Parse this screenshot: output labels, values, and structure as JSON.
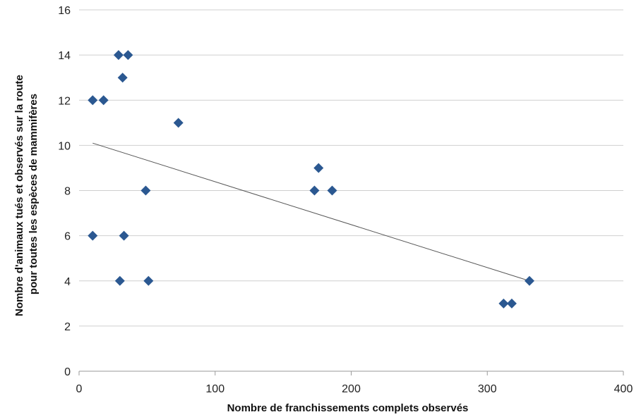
{
  "chart_data": {
    "type": "scatter",
    "xlabel": "Nombre de franchissements complets observés",
    "ylabel_lines": [
      "Nombre d'animaux tués et observés sur la route",
      "pour toutes les espèces de mammifères"
    ],
    "xlim": [
      0,
      400
    ],
    "ylim": [
      0,
      16
    ],
    "x_ticks": [
      0,
      100,
      200,
      300,
      400
    ],
    "y_ticks": [
      0,
      2,
      4,
      6,
      8,
      10,
      12,
      14,
      16
    ],
    "grid": "horizontal",
    "marker": "diamond",
    "marker_color": "#2b5891",
    "points": [
      {
        "x": 10,
        "y": 12
      },
      {
        "x": 18,
        "y": 12
      },
      {
        "x": 10,
        "y": 6
      },
      {
        "x": 29,
        "y": 14
      },
      {
        "x": 36,
        "y": 14
      },
      {
        "x": 32,
        "y": 13
      },
      {
        "x": 33,
        "y": 6
      },
      {
        "x": 30,
        "y": 4
      },
      {
        "x": 49,
        "y": 8
      },
      {
        "x": 51,
        "y": 4
      },
      {
        "x": 73,
        "y": 11
      },
      {
        "x": 176,
        "y": 9
      },
      {
        "x": 173,
        "y": 8
      },
      {
        "x": 186,
        "y": 8
      },
      {
        "x": 312,
        "y": 3
      },
      {
        "x": 318,
        "y": 3
      },
      {
        "x": 331,
        "y": 4
      }
    ],
    "trendline": {
      "x": [
        10,
        331
      ],
      "y": [
        10.1,
        4.0
      ]
    }
  }
}
